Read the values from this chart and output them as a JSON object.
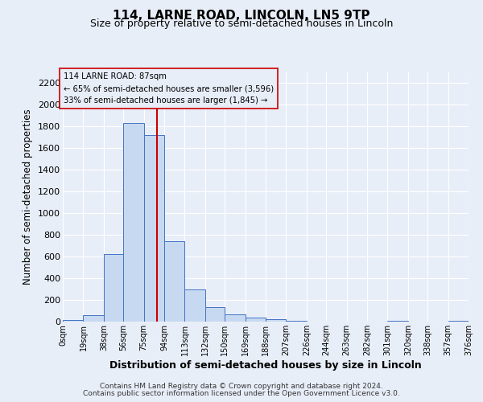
{
  "title": "114, LARNE ROAD, LINCOLN, LN5 9TP",
  "subtitle": "Size of property relative to semi-detached houses in Lincoln",
  "xlabel": "Distribution of semi-detached houses by size in Lincoln",
  "ylabel": "Number of semi-detached properties",
  "bin_edges": [
    0,
    19,
    38,
    56,
    75,
    94,
    113,
    132,
    150,
    169,
    188,
    207,
    226,
    244,
    263,
    282,
    301,
    320,
    338,
    357,
    376
  ],
  "bin_labels": [
    "0sqm",
    "19sqm",
    "38sqm",
    "56sqm",
    "75sqm",
    "94sqm",
    "113sqm",
    "132sqm",
    "150sqm",
    "169sqm",
    "188sqm",
    "207sqm",
    "226sqm",
    "244sqm",
    "263sqm",
    "282sqm",
    "301sqm",
    "320sqm",
    "338sqm",
    "357sqm",
    "376sqm"
  ],
  "counts": [
    15,
    60,
    620,
    1830,
    1720,
    740,
    300,
    130,
    65,
    40,
    20,
    5,
    0,
    0,
    0,
    0,
    10,
    0,
    0,
    5
  ],
  "bar_color": "#c6d9f0",
  "bar_edge_color": "#4472c4",
  "property_value": 87,
  "red_line_color": "#cc0000",
  "annotation_title": "114 LARNE ROAD: 87sqm",
  "annotation_line1": "← 65% of semi-detached houses are smaller (3,596)",
  "annotation_line2": "33% of semi-detached houses are larger (1,845) →",
  "ylim": [
    0,
    2300
  ],
  "yticks": [
    0,
    200,
    400,
    600,
    800,
    1000,
    1200,
    1400,
    1600,
    1800,
    2000,
    2200
  ],
  "background_color": "#e8eef8",
  "grid_color": "#ffffff",
  "footer1": "Contains HM Land Registry data © Crown copyright and database right 2024.",
  "footer2": "Contains public sector information licensed under the Open Government Licence v3.0."
}
